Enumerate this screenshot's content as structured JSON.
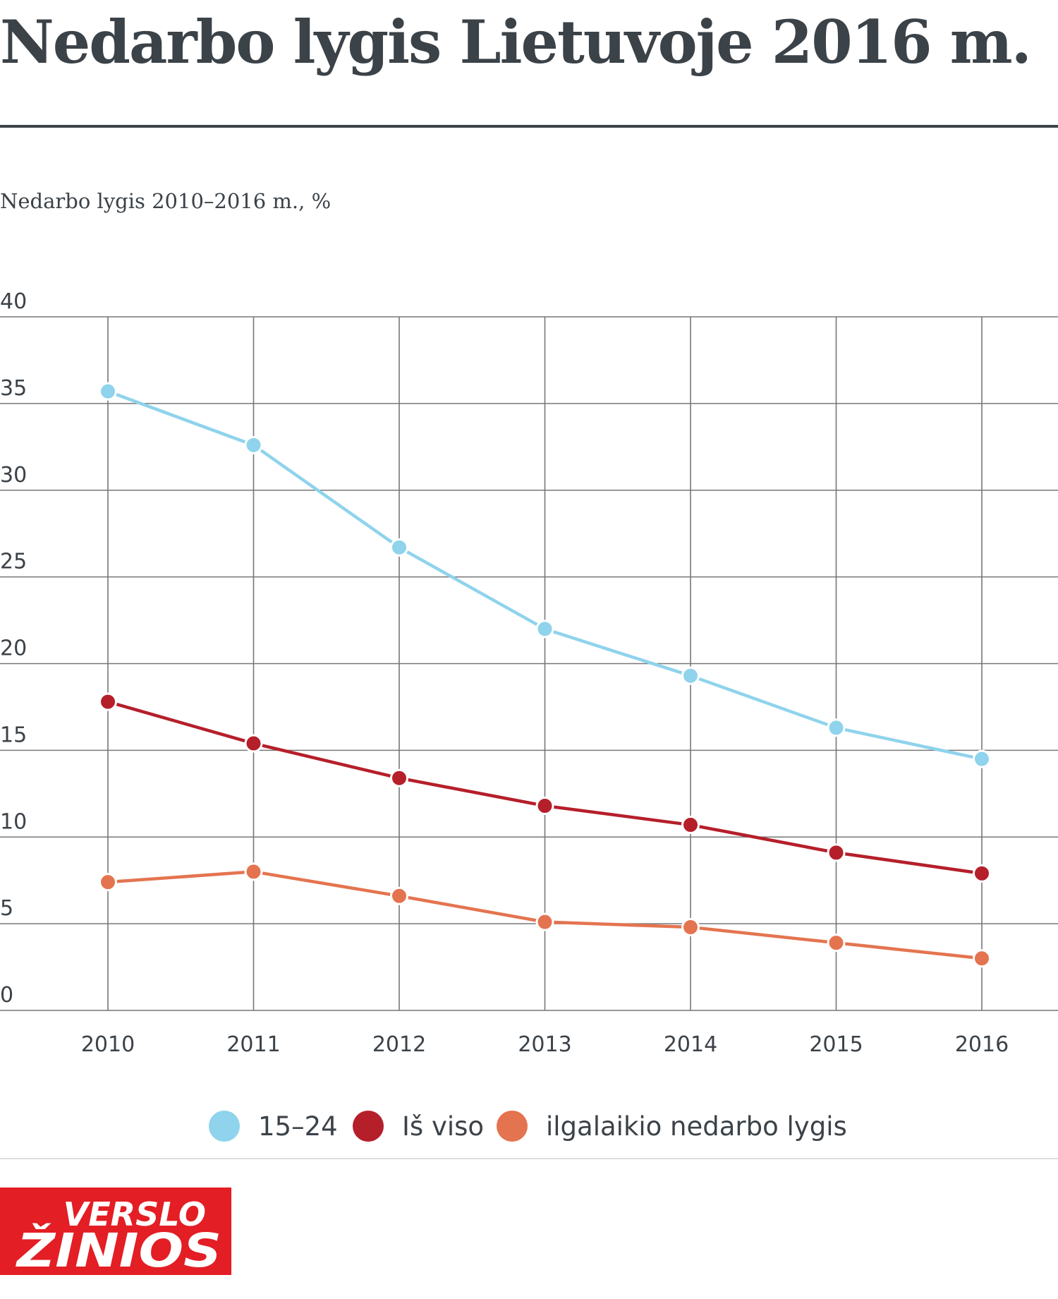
{
  "page": {
    "title": "Nedarbo lygis Lietuvoje 2016 m."
  },
  "chart_data": {
    "type": "line",
    "title": "Nedarbo lygis 2010–2016 m., %",
    "xlabel": "",
    "ylabel": "",
    "x": [
      "2010",
      "2011",
      "2012",
      "2013",
      "2014",
      "2015",
      "2016"
    ],
    "ylim": [
      0,
      40
    ],
    "yticks": [
      0,
      5,
      10,
      15,
      20,
      25,
      30,
      35,
      40
    ],
    "grid": true,
    "legend_position": "bottom",
    "series": [
      {
        "name": "15–24",
        "color": "#8fd3ec",
        "values": [
          35.7,
          32.6,
          26.7,
          22.0,
          19.3,
          16.3,
          14.5
        ]
      },
      {
        "name": "Iš viso",
        "color": "#b51f2a",
        "values": [
          17.8,
          15.4,
          13.4,
          11.8,
          10.7,
          9.1,
          7.9
        ]
      },
      {
        "name": "ilgalaikio nedarbo lygis",
        "color": "#e4744f",
        "values": [
          7.4,
          8.0,
          6.6,
          5.1,
          4.8,
          3.9,
          3.0
        ]
      }
    ]
  },
  "logo": {
    "line1": "VERSLO",
    "line2": "ŽINIOS"
  }
}
